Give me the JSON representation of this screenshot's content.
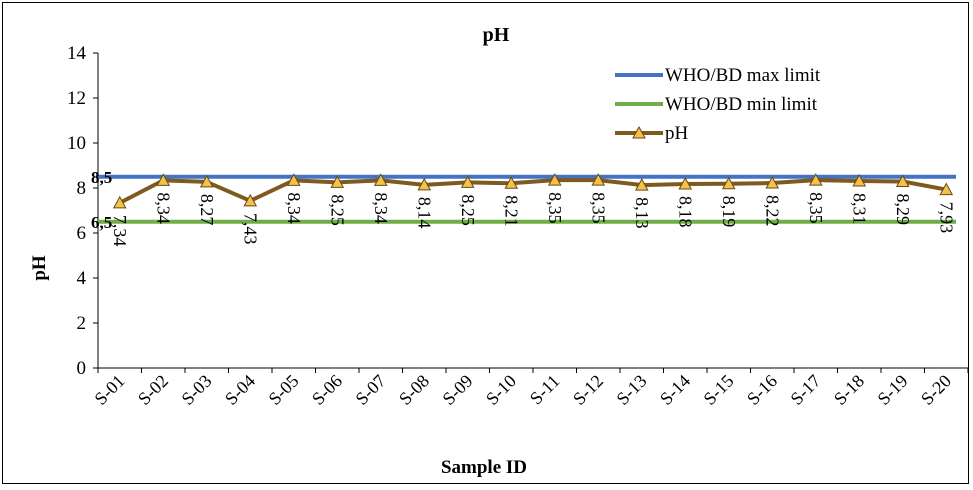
{
  "chart_data": {
    "type": "line",
    "title": "pH",
    "xlabel": "Sample ID",
    "ylabel": "pH",
    "ylim": [
      0,
      14
    ],
    "yticks": [
      "0",
      "2",
      "4",
      "6",
      "8",
      "10",
      "12",
      "14"
    ],
    "categories": [
      "S-01",
      "S-02",
      "S-03",
      "S-04",
      "S-05",
      "S-06",
      "S-07",
      "S-08",
      "S-09",
      "S-10",
      "S-11",
      "S-12",
      "S-13",
      "S-14",
      "S-15",
      "S-16",
      "S-17",
      "S-18",
      "S-19",
      "S-20"
    ],
    "series": [
      {
        "name": "WHO/BD max limit",
        "color": "#4472C4",
        "constant": 8.5,
        "label": "8,5"
      },
      {
        "name": "WHO/BD min limit",
        "color": "#70AD47",
        "constant": 6.5,
        "label": "6,5"
      },
      {
        "name": "pH",
        "color": "#7F5A1E",
        "marker": "triangle",
        "marker_color": "#F2C14E",
        "values": [
          7.34,
          8.34,
          8.27,
          7.43,
          8.34,
          8.25,
          8.34,
          8.14,
          8.25,
          8.21,
          8.35,
          8.35,
          8.13,
          8.18,
          8.19,
          8.22,
          8.35,
          8.31,
          8.29,
          7.93
        ],
        "data_labels": [
          "7,34",
          "8,34",
          "8,27",
          "7,43",
          "8,34",
          "8,25",
          "8,34",
          "8,14",
          "8,25",
          "8,21",
          "8,35",
          "8,35",
          "8,13",
          "8,18",
          "8,19",
          "8,22",
          "8,35",
          "8,31",
          "8,29",
          "7,93"
        ]
      }
    ],
    "legend_position": "top-right",
    "grid": false
  }
}
